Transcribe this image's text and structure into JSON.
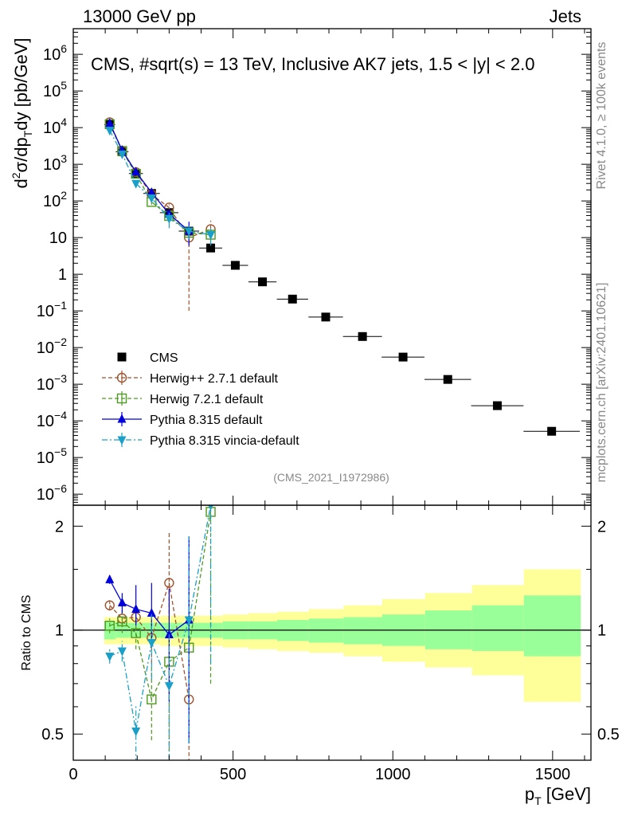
{
  "header": {
    "left": "13000 GeV pp",
    "right": "Jets"
  },
  "side_labels": {
    "rivet": "Rivet 4.1.0, ≥ 100k events",
    "mcplots": "mcplots.cern.ch [arXiv:2401.10621]"
  },
  "colors": {
    "cms": "#000000",
    "herwigpp": "#a0522d",
    "herwig7": "#4d9a1f",
    "pythia": "#0000dd",
    "vincia": "#1aa0c8",
    "band_outer": "#ffff99",
    "band_inner": "#99ff99"
  },
  "chart_data": [
    {
      "type": "scatter",
      "panel": "main",
      "title": "CMS, #sqrt(s) = 13 TeV, Inclusive AK7 jets, 1.5 < |y| < 2.0",
      "ylabel_main": "d",
      "ylabel_sup": "2",
      "ylabel_mid": "σ/dp",
      "ylabel_sub": "T",
      "ylabel_tail": "dy [pb/GeV]",
      "yscale": "log",
      "ylim": [
        5e-07,
        5000000.0
      ],
      "xlim": [
        0,
        1620
      ],
      "analysis_id": "(CMS_2021_I1972986)",
      "y_ticks": [
        {
          "v": 1000000.0,
          "base": "10",
          "exp": "6"
        },
        {
          "v": 100000.0,
          "base": "10",
          "exp": "5"
        },
        {
          "v": 10000.0,
          "base": "10",
          "exp": "4"
        },
        {
          "v": 1000.0,
          "base": "10",
          "exp": "3"
        },
        {
          "v": 100.0,
          "base": "10",
          "exp": "2"
        },
        {
          "v": 10,
          "base": "10",
          "exp": ""
        },
        {
          "v": 1,
          "base": "1",
          "exp": ""
        },
        {
          "v": 0.1,
          "base": "10",
          "exp": "−1"
        },
        {
          "v": 0.01,
          "base": "10",
          "exp": "−2"
        },
        {
          "v": 0.001,
          "base": "10",
          "exp": "−3"
        },
        {
          "v": 0.0001,
          "base": "10",
          "exp": "−4"
        },
        {
          "v": 1e-05,
          "base": "10",
          "exp": "−5"
        },
        {
          "v": 1e-06,
          "base": "10",
          "exp": "−6"
        }
      ],
      "legend_position": "bottom-left",
      "series": [
        {
          "name": "CMS",
          "key": "cms",
          "marker": "square",
          "x": [
            114,
            153,
            196,
            245,
            300,
            362,
            430,
            507,
            592,
            686,
            790,
            905,
            1032,
            1172,
            1327,
            1497
          ],
          "y": [
            12000,
            2200,
            560,
            160,
            48,
            15,
            5.2,
            1.75,
            0.62,
            0.21,
            0.068,
            0.02,
            0.0055,
            0.00135,
            0.00026,
            5.2e-05
          ],
          "xerr_lo": [
            17,
            20,
            22,
            26,
            29,
            32,
            36,
            40,
            44,
            49,
            54,
            61,
            67,
            73,
            82,
            88
          ],
          "xerr_hi": [
            17,
            20,
            22,
            26,
            29,
            32,
            36,
            40,
            44,
            49,
            54,
            61,
            67,
            73,
            82,
            88
          ]
        },
        {
          "name": "Herwig++ 2.7.1 default",
          "key": "herwigpp",
          "marker": "open-circle",
          "dash": "5,3",
          "x": [
            114,
            153,
            196,
            245,
            300,
            362,
            430
          ],
          "y": [
            14000,
            2350,
            610,
            150,
            66,
            10,
            17
          ],
          "yerr_lo": [
            500,
            150,
            60,
            20,
            15,
            9.9,
            5
          ],
          "yerr_hi": [
            500,
            150,
            60,
            20,
            15,
            5,
            12
          ]
        },
        {
          "name": "Herwig 7.2.1 default",
          "key": "herwig7",
          "marker": "open-square",
          "dash": "5,3",
          "x": [
            114,
            153,
            196,
            245,
            300,
            362,
            430
          ],
          "y": [
            12400,
            2300,
            550,
            94,
            39,
            13.5,
            12
          ],
          "yerr_lo": [
            600,
            200,
            60,
            15,
            10,
            5,
            5
          ],
          "yerr_hi": [
            600,
            200,
            60,
            15,
            10,
            5,
            5
          ]
        },
        {
          "name": "Pythia 8.315 default",
          "key": "pythia",
          "marker": "triangle-up",
          "dash": "",
          "x": [
            114,
            153,
            196,
            245,
            300,
            362
          ],
          "y": [
            13200,
            2400,
            620,
            170,
            44,
            15
          ],
          "yerr_lo": [
            400,
            150,
            60,
            20,
            10,
            9
          ],
          "yerr_hi": [
            400,
            150,
            60,
            20,
            10,
            12
          ]
        },
        {
          "name": "Pythia 8.315 vincia-default",
          "key": "vincia",
          "marker": "triangle-down",
          "dash": "7,3,2,3",
          "x": [
            114,
            153,
            196,
            245,
            300,
            362,
            430
          ],
          "y": [
            8400,
            1900,
            300,
            120,
            33,
            15,
            12
          ],
          "yerr_lo": [
            600,
            200,
            60,
            20,
            15,
            6,
            6
          ],
          "yerr_hi": [
            600,
            200,
            60,
            20,
            15,
            6,
            6
          ]
        }
      ]
    },
    {
      "type": "scatter",
      "panel": "ratio",
      "ylabel": "Ratio to CMS",
      "xlabel_main": "p",
      "xlabel_sub": "T",
      "xlabel_unit": " [GeV]",
      "yscale": "log",
      "ylim": [
        0.42,
        2.3
      ],
      "xlim": [
        0,
        1620
      ],
      "y_ticks": [
        {
          "v": 2,
          "label": "2"
        },
        {
          "v": 1,
          "label": "1"
        },
        {
          "v": 0.5,
          "label": "0.5"
        }
      ],
      "x_ticks": [
        {
          "v": 0,
          "label": "0"
        },
        {
          "v": 500,
          "label": "500"
        },
        {
          "v": 1000,
          "label": "1000"
        },
        {
          "v": 1500,
          "label": "1500"
        }
      ],
      "bands": {
        "edges": [
          97,
          133,
          174,
          220,
          272,
          330,
          395,
          468,
          548,
          638,
          737,
          846,
          967,
          1101,
          1248,
          1410,
          1588
        ],
        "outer_lo": [
          0.91,
          0.91,
          0.91,
          0.91,
          0.9,
          0.9,
          0.9,
          0.89,
          0.88,
          0.87,
          0.86,
          0.84,
          0.81,
          0.78,
          0.74,
          0.62
        ],
        "outer_hi": [
          1.09,
          1.09,
          1.09,
          1.09,
          1.1,
          1.1,
          1.1,
          1.11,
          1.12,
          1.13,
          1.15,
          1.18,
          1.23,
          1.28,
          1.35,
          1.5
        ],
        "inner_lo": [
          0.94,
          0.95,
          0.95,
          0.95,
          0.95,
          0.95,
          0.95,
          0.94,
          0.94,
          0.93,
          0.92,
          0.91,
          0.9,
          0.88,
          0.87,
          0.84
        ],
        "inner_hi": [
          1.06,
          1.05,
          1.05,
          1.05,
          1.05,
          1.05,
          1.05,
          1.06,
          1.06,
          1.07,
          1.08,
          1.09,
          1.11,
          1.14,
          1.18,
          1.26
        ]
      },
      "series": [
        {
          "name": "Herwig++ 2.7.1 default",
          "key": "herwigpp",
          "marker": "open-circle",
          "dash": "5,3",
          "x": [
            114,
            153,
            196,
            245,
            300,
            362
          ],
          "y": [
            1.18,
            1.08,
            1.09,
            0.95,
            1.37,
            0.63
          ],
          "yerr_lo": [
            0.04,
            0.06,
            0.09,
            0.15,
            0.3,
            0.25
          ],
          "yerr_hi": [
            0.04,
            0.06,
            0.09,
            0.15,
            0.55,
            0.25
          ]
        },
        {
          "name": "Herwig 7.2.1 default",
          "key": "herwig7",
          "marker": "open-square",
          "dash": "5,3",
          "x": [
            114,
            153,
            196,
            245,
            300,
            362,
            430
          ],
          "y": [
            1.03,
            1.06,
            0.98,
            0.63,
            0.81,
            0.89,
            2.2
          ],
          "yerr_lo": [
            0.05,
            0.08,
            0.1,
            0.15,
            0.45,
            0.25,
            1.5
          ],
          "yerr_hi": [
            0.05,
            0.08,
            0.1,
            0.15,
            0.2,
            0.5,
            0.5
          ]
        },
        {
          "name": "Pythia 8.315 default",
          "key": "pythia",
          "marker": "triangle-up",
          "dash": "",
          "x": [
            114,
            153,
            196,
            245,
            300,
            362
          ],
          "y": [
            1.4,
            1.2,
            1.15,
            1.12,
            0.97,
            1.07
          ],
          "yerr_lo": [
            0.04,
            0.08,
            0.12,
            0.2,
            0.35,
            0.6
          ],
          "yerr_hi": [
            0.04,
            0.08,
            0.2,
            0.25,
            0.35,
            0.8
          ]
        },
        {
          "name": "Pythia 8.315 vincia-default",
          "key": "vincia",
          "marker": "triangle-down",
          "dash": "7,3,2,3",
          "x": [
            114,
            153,
            196,
            245,
            300,
            362,
            430
          ],
          "y": [
            0.84,
            0.87,
            0.51,
            0.92,
            0.69,
            1.07,
            2.3
          ],
          "yerr_lo": [
            0.04,
            0.06,
            0.1,
            0.2,
            0.3,
            0.6,
            1.5
          ],
          "yerr_hi": [
            0.04,
            0.06,
            0.1,
            0.2,
            0.3,
            0.8,
            0.5
          ]
        }
      ]
    }
  ]
}
